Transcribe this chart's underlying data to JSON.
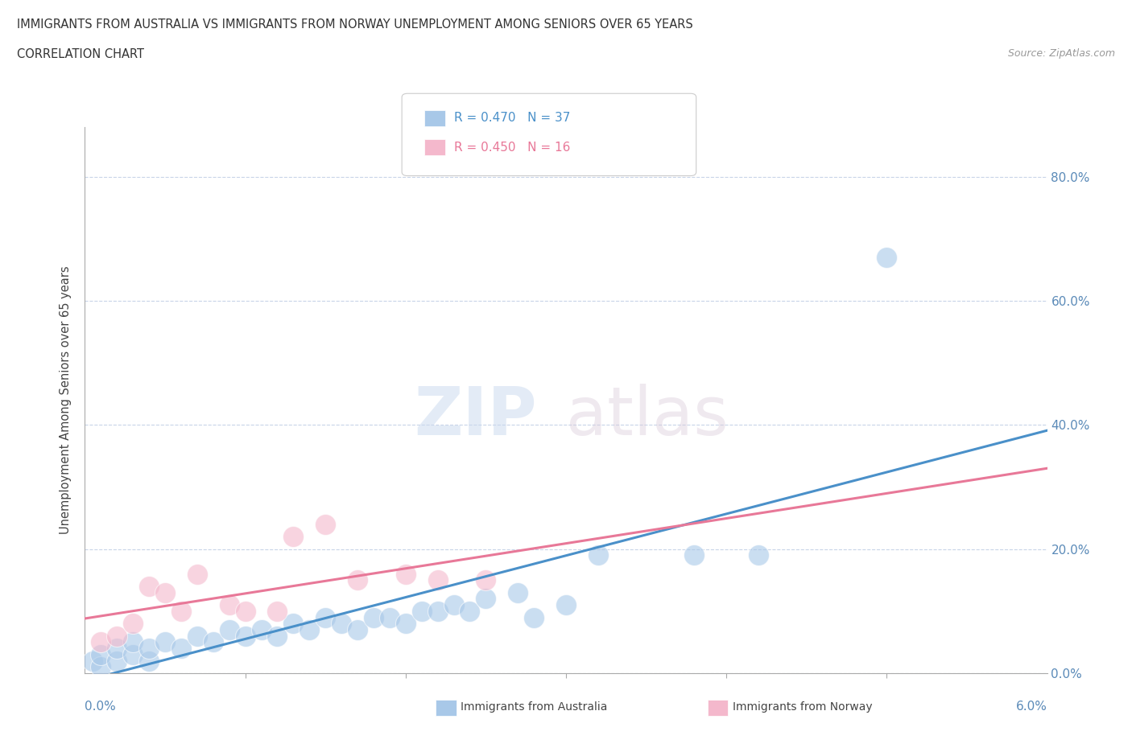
{
  "title_line1": "IMMIGRANTS FROM AUSTRALIA VS IMMIGRANTS FROM NORWAY UNEMPLOYMENT AMONG SENIORS OVER 65 YEARS",
  "title_line2": "CORRELATION CHART",
  "source": "Source: ZipAtlas.com",
  "ylabel": "Unemployment Among Seniors over 65 years",
  "watermark_zip": "ZIP",
  "watermark_atlas": "atlas",
  "australia_x": [
    0.0005,
    0.001,
    0.001,
    0.002,
    0.002,
    0.003,
    0.003,
    0.004,
    0.004,
    0.005,
    0.006,
    0.007,
    0.008,
    0.009,
    0.01,
    0.011,
    0.012,
    0.013,
    0.014,
    0.015,
    0.016,
    0.017,
    0.018,
    0.019,
    0.02,
    0.021,
    0.022,
    0.023,
    0.024,
    0.025,
    0.027,
    0.028,
    0.03,
    0.032,
    0.038,
    0.042,
    0.05
  ],
  "australia_y": [
    0.02,
    0.01,
    0.03,
    0.02,
    0.04,
    0.03,
    0.05,
    0.02,
    0.04,
    0.05,
    0.04,
    0.06,
    0.05,
    0.07,
    0.06,
    0.07,
    0.06,
    0.08,
    0.07,
    0.09,
    0.08,
    0.07,
    0.09,
    0.09,
    0.08,
    0.1,
    0.1,
    0.11,
    0.1,
    0.12,
    0.13,
    0.09,
    0.11,
    0.19,
    0.19,
    0.19,
    0.67
  ],
  "norway_x": [
    0.001,
    0.002,
    0.003,
    0.004,
    0.005,
    0.006,
    0.007,
    0.009,
    0.01,
    0.012,
    0.013,
    0.015,
    0.017,
    0.02,
    0.022,
    0.025
  ],
  "norway_y": [
    0.05,
    0.06,
    0.08,
    0.14,
    0.13,
    0.1,
    0.16,
    0.11,
    0.1,
    0.1,
    0.22,
    0.24,
    0.15,
    0.16,
    0.15,
    0.15
  ],
  "australia_color": "#a8c8e8",
  "norway_color": "#f4b8cc",
  "australia_line_color": "#4a90c9",
  "norway_line_color": "#e87898",
  "xlim": [
    0.0,
    0.06
  ],
  "ylim": [
    0.0,
    0.88
  ],
  "yticks": [
    0.0,
    0.2,
    0.4,
    0.6,
    0.8
  ],
  "ytick_labels": [
    "0.0%",
    "20.0%",
    "40.0%",
    "60.0%",
    "80.0%"
  ],
  "xtick_label_left": "0.0%",
  "xtick_label_right": "6.0%",
  "legend_label_au": "R = 0.470   N = 37",
  "legend_label_no": "R = 0.450   N = 16",
  "legend_text_color_au": "#4a90c9",
  "legend_text_color_no": "#e87898",
  "bottom_legend_au": "Immigrants from Australia",
  "bottom_legend_no": "Immigrants from Norway",
  "background_color": "#ffffff",
  "grid_color": "#c8d4e8"
}
